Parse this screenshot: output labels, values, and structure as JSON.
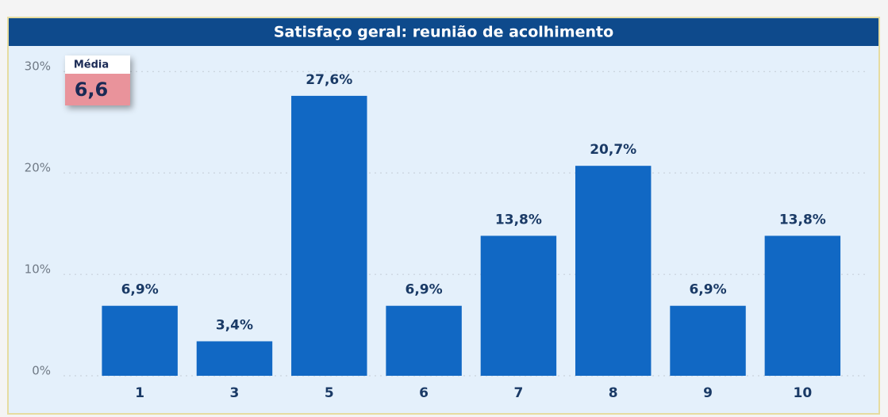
{
  "chart_data": {
    "type": "bar",
    "title": "Satisfaço geral: reunião de acolhimento",
    "categories": [
      "1",
      "3",
      "5",
      "6",
      "7",
      "8",
      "9",
      "10"
    ],
    "values": [
      6.9,
      3.4,
      27.6,
      6.9,
      13.8,
      20.7,
      6.9,
      13.8
    ],
    "value_labels": [
      "6,9%",
      "3,4%",
      "27,6%",
      "6,9%",
      "13,8%",
      "20,7%",
      "6,9%",
      "13,8%"
    ],
    "color": "#1168c4",
    "ylim": [
      0,
      31.5
    ],
    "yticks": [
      {
        "value": 0,
        "label": "0%"
      },
      {
        "value": 10,
        "label": "10%"
      },
      {
        "value": 20,
        "label": "20%"
      },
      {
        "value": 30,
        "label": "30%"
      }
    ],
    "grid": true,
    "annotation": {
      "label": "Média",
      "text": "6,6"
    }
  }
}
